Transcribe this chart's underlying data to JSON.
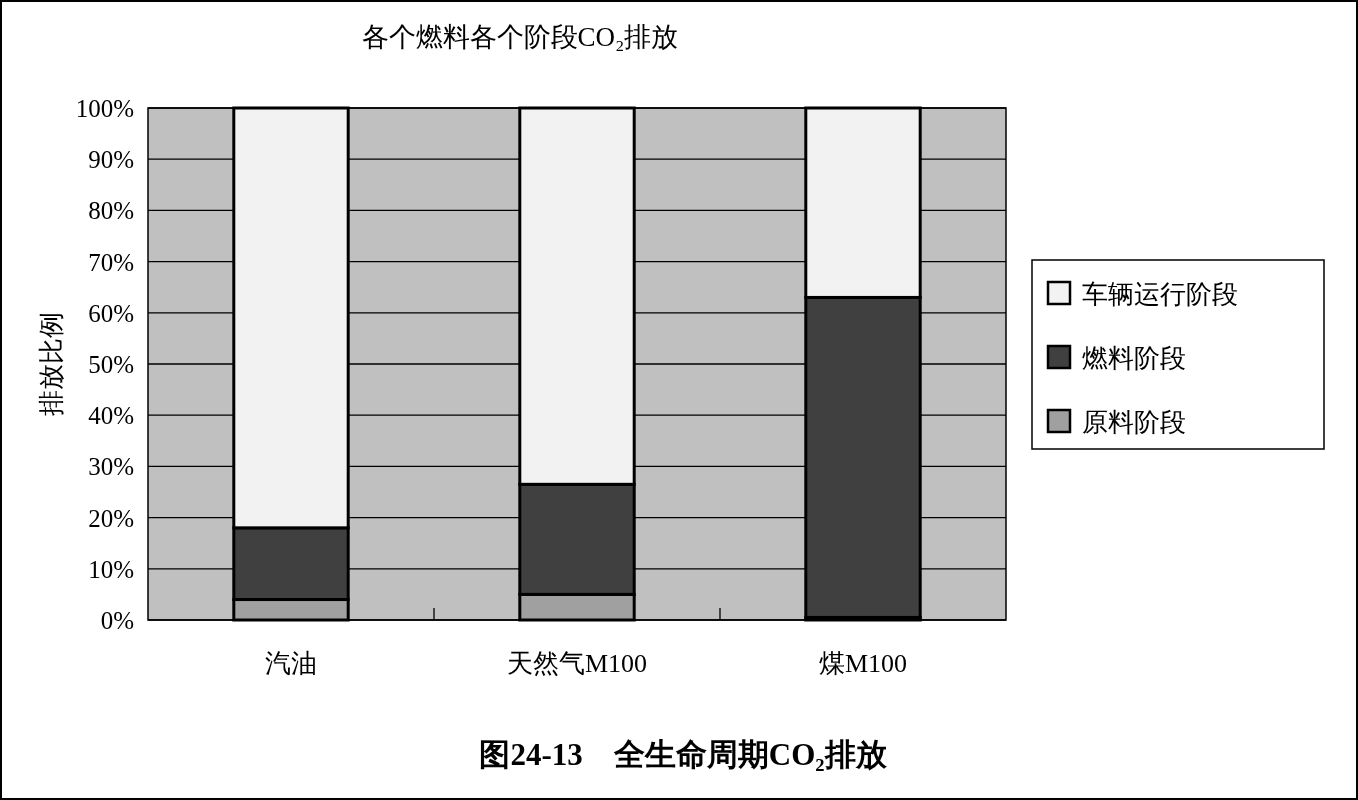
{
  "chart_data": {
    "type": "bar",
    "title": "各个燃料各个阶段CO₂排放",
    "ylabel": "排放比例",
    "stacked": true,
    "categories": [
      "汽油",
      "天然气M100",
      "煤M100"
    ],
    "series": [
      {
        "name": "原料阶段",
        "color": "#a0a0a0",
        "values": [
          4,
          5,
          0.5
        ]
      },
      {
        "name": "燃料阶段",
        "color": "#404040",
        "values": [
          14,
          21.5,
          62.5
        ]
      },
      {
        "name": "车辆运行阶段",
        "color": "#f2f2f2",
        "values": [
          82,
          73.5,
          37
        ]
      }
    ],
    "ylim": [
      0,
      100
    ],
    "yticks": [
      {
        "value": 0,
        "label": "0%"
      },
      {
        "value": 10,
        "label": "10%"
      },
      {
        "value": 20,
        "label": "20%"
      },
      {
        "value": 30,
        "label": "30%"
      },
      {
        "value": 40,
        "label": "40%"
      },
      {
        "value": 50,
        "label": "50%"
      },
      {
        "value": 60,
        "label": "60%"
      },
      {
        "value": 70,
        "label": "70%"
      },
      {
        "value": 80,
        "label": "80%"
      },
      {
        "value": 90,
        "label": "90%"
      },
      {
        "value": 100,
        "label": "100%"
      }
    ],
    "grid": "y",
    "legend": "right",
    "annotations": [
      "图24-13　全生命周期CO₂排放"
    ]
  }
}
